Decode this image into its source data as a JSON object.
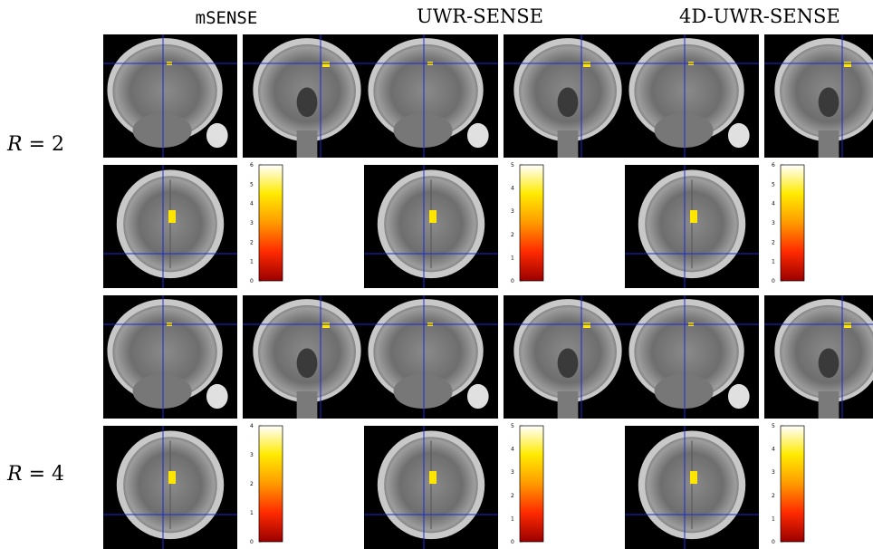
{
  "columns": [
    {
      "title": "mSENSE"
    },
    {
      "title": "UWR-SENSE"
    },
    {
      "title": "4D-UWR-SENSE"
    }
  ],
  "rows": [
    {
      "label_var": "R",
      "label_eq": "= 2"
    },
    {
      "label_var": "R",
      "label_eq": "= 4"
    }
  ],
  "views": [
    "sagittal",
    "coronal",
    "axial"
  ],
  "colorbars": [
    {
      "ticks": [
        "0",
        "1",
        "2",
        "3",
        "4",
        "5",
        "6"
      ]
    },
    {
      "ticks": [
        "0",
        "1",
        "2",
        "3",
        "4",
        "5"
      ]
    },
    {
      "ticks": [
        "0",
        "1",
        "2",
        "3",
        "4",
        "5",
        "6"
      ]
    },
    {
      "ticks": [
        "0",
        "1",
        "2",
        "3",
        "4"
      ]
    },
    {
      "ticks": [
        "0",
        "1",
        "2",
        "3",
        "4",
        "5"
      ]
    },
    {
      "ticks": [
        "0",
        "1",
        "2",
        "3",
        "4",
        "5"
      ]
    }
  ],
  "colors": {
    "crosshair": "#1a2bd6",
    "activation_hot": "#ffe600",
    "colormap_top": "#ffffff",
    "colormap_mid": "#ffea00",
    "colormap_low": "#ff6a00",
    "colormap_bottom": "#9a0000"
  }
}
